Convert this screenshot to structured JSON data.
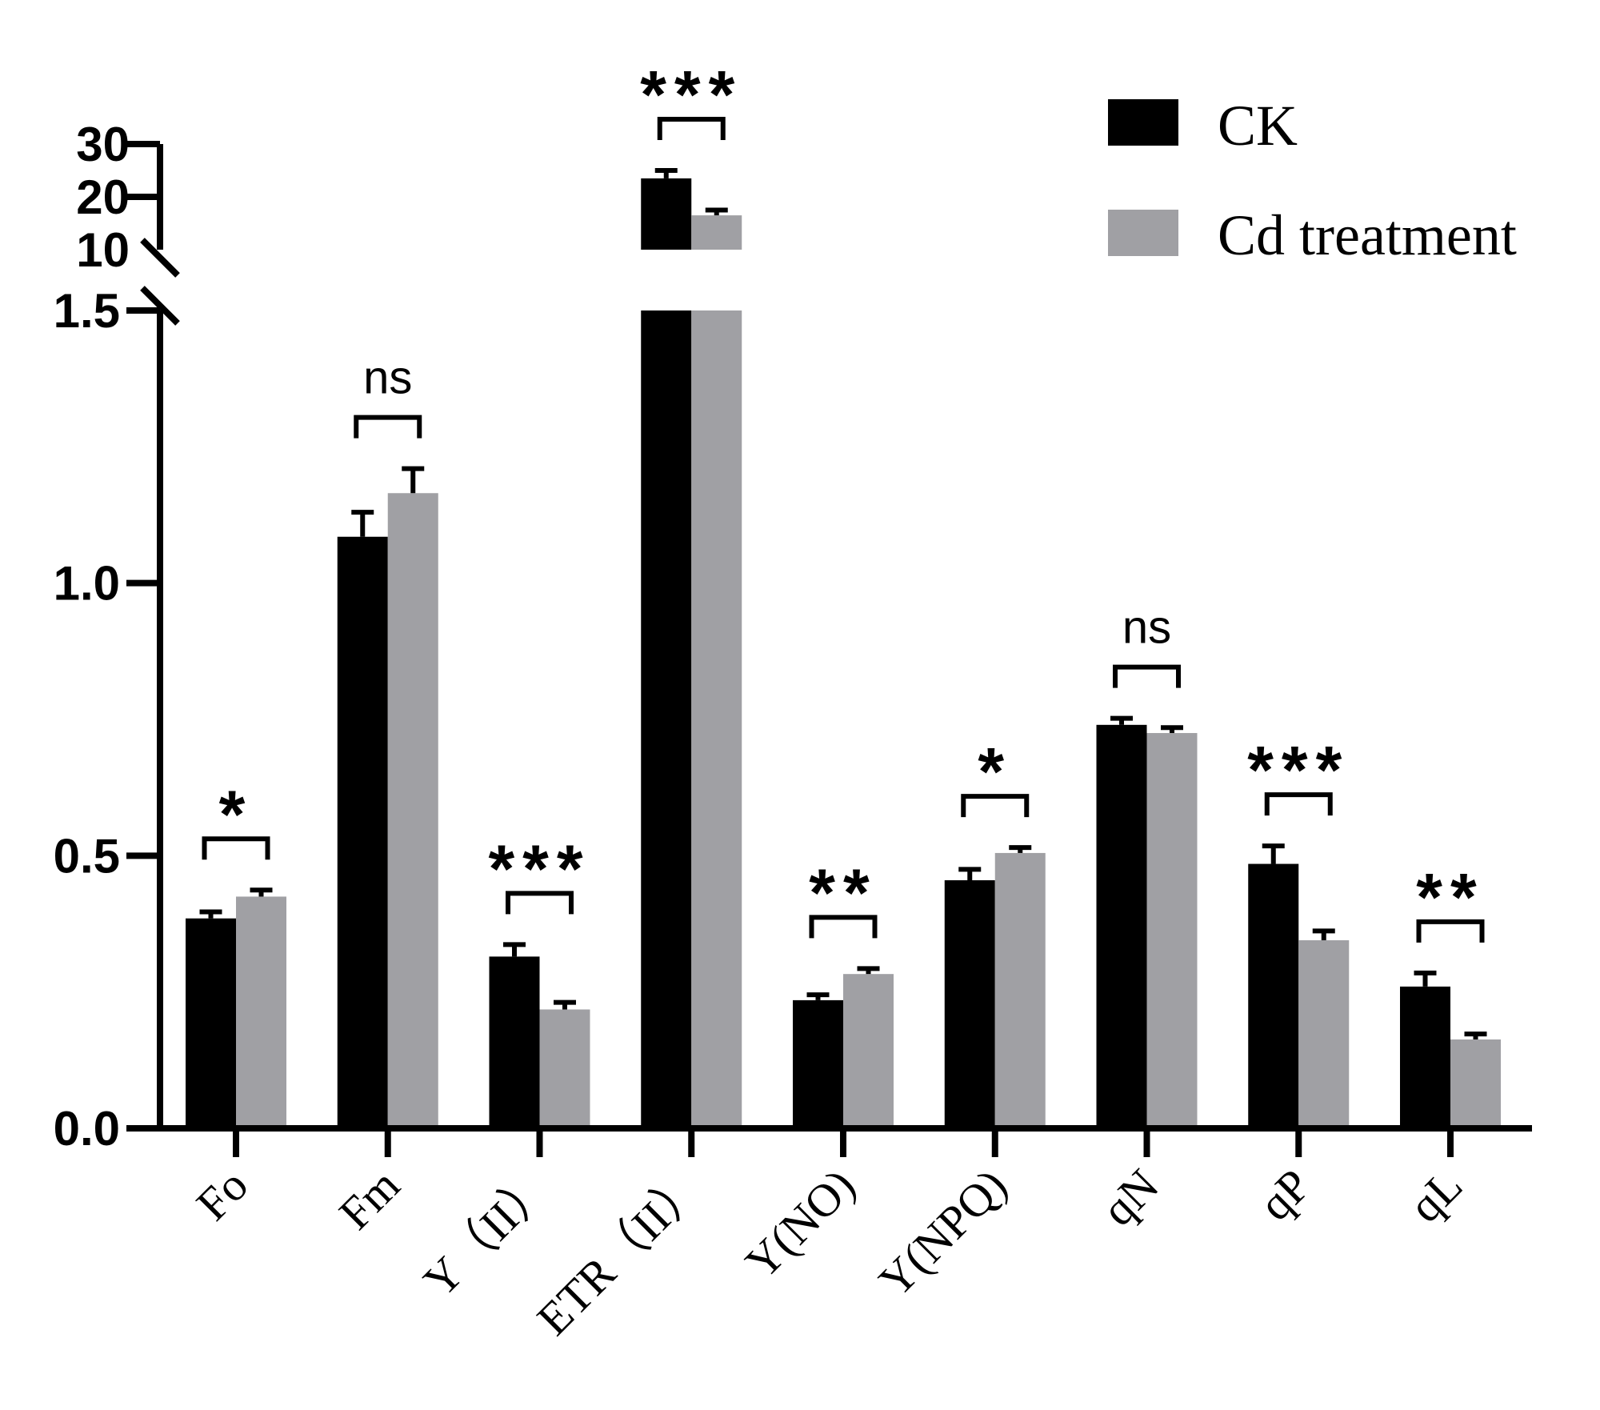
{
  "chart_data": {
    "type": "bar",
    "title": "",
    "xlabel": "",
    "ylabel": "",
    "categories": [
      "Fo",
      "Fm",
      "Y（II）",
      "ETR（II）",
      "Y(NO)",
      "Y(NPQ)",
      "qN",
      "qP",
      "qL"
    ],
    "series": [
      {
        "name": "CK",
        "color": "#000000",
        "values": [
          0.385,
          1.085,
          0.315,
          23.5,
          0.235,
          0.455,
          0.74,
          0.485,
          0.26
        ],
        "errors": [
          0.012,
          0.045,
          0.022,
          1.5,
          0.01,
          0.02,
          0.012,
          0.033,
          0.025
        ]
      },
      {
        "name": "Cd treatment",
        "color": "#a0a0a4",
        "values": [
          0.425,
          1.165,
          0.218,
          16.5,
          0.283,
          0.505,
          0.725,
          0.345,
          0.163
        ],
        "errors": [
          0.012,
          0.045,
          0.013,
          1.0,
          0.01,
          0.01,
          0.01,
          0.017,
          0.01
        ]
      }
    ],
    "significance": [
      "*",
      "ns",
      "***",
      "***",
      "**",
      "*",
      "ns",
      "***",
      "**"
    ],
    "y_axis": {
      "break": true,
      "lower_range": [
        0,
        1.5
      ],
      "upper_range": [
        10,
        30
      ],
      "lower_ticks": [
        "0.0",
        "0.5",
        "1.0",
        "1.5"
      ],
      "upper_ticks": [
        "10",
        "20",
        "30"
      ]
    },
    "legend": {
      "position": "top-right",
      "entries": [
        "CK",
        "Cd treatment"
      ]
    }
  }
}
